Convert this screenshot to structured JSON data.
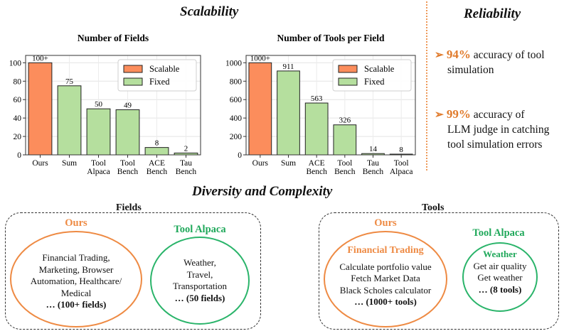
{
  "sections": {
    "scalability": "Scalability",
    "reliability": "Reliability",
    "diversity": "Diversity and Complexity"
  },
  "reliability_items": [
    {
      "arrow": "➢",
      "value": "94%",
      "text_line1": " accuracy of tool",
      "text_line2": "simulation"
    },
    {
      "arrow": "➢",
      "value": "99%",
      "text_line1": " accuracy of",
      "text_line2": "LLM judge in catching",
      "text_line3": "tool simulation errors"
    }
  ],
  "chart_data": [
    {
      "type": "bar",
      "title": "Number of Fields",
      "categories": [
        "Ours",
        "Sum",
        "Tool\nAlpaca",
        "Tool\nBench",
        "ACE\nBench",
        "Tau\nBench"
      ],
      "values": [
        100,
        75,
        50,
        49,
        8,
        2
      ],
      "value_labels": [
        "100+",
        "75",
        "50",
        "49",
        "8",
        "2"
      ],
      "kinds": [
        "scalable",
        "fixed",
        "fixed",
        "fixed",
        "fixed",
        "fixed"
      ],
      "yticks": [
        0,
        20,
        40,
        60,
        80,
        100
      ],
      "ylim": [
        0,
        108
      ],
      "grid": true,
      "legend": {
        "placement": "top-right",
        "entries": [
          {
            "label": "Scalable",
            "kind": "scalable"
          },
          {
            "label": "Fixed",
            "kind": "fixed"
          }
        ]
      },
      "colors": {
        "scalable": "#fc8d5c",
        "fixed": "#b5df9e"
      }
    },
    {
      "type": "bar",
      "title": "Number of Tools per Field",
      "categories": [
        "Ours",
        "Sum",
        "ACE\nBench",
        "Tool\nBench",
        "Tau\nBench",
        "Tool\nAlpaca"
      ],
      "values": [
        1000,
        911,
        563,
        326,
        14,
        8
      ],
      "value_labels": [
        "1000+",
        "911",
        "563",
        "326",
        "14",
        "8"
      ],
      "kinds": [
        "scalable",
        "fixed",
        "fixed",
        "fixed",
        "fixed",
        "fixed"
      ],
      "yticks": [
        0,
        200,
        400,
        600,
        800,
        1000
      ],
      "ylim": [
        0,
        1080
      ],
      "grid": true,
      "legend": {
        "placement": "top-right",
        "entries": [
          {
            "label": "Scalable",
            "kind": "scalable"
          },
          {
            "label": "Fixed",
            "kind": "fixed"
          }
        ]
      },
      "colors": {
        "scalable": "#fc8d5c",
        "fixed": "#b5df9e"
      }
    }
  ],
  "fields_panel": {
    "title": "Fields",
    "ours": {
      "label": "Ours",
      "line1": "Financial Trading,",
      "line2": "Marketing, Browser",
      "line3": "Automation, Healthcare/",
      "line4": "Medical",
      "count": "… (100+ fields)"
    },
    "tool_alpaca": {
      "label": "Tool Alpaca",
      "line1": "Weather,",
      "line2": "Travel,",
      "line3": "Transportation",
      "count": "… (50 fields)"
    }
  },
  "tools_panel": {
    "title": "Tools",
    "ours": {
      "label": "Ours",
      "field": "Financial Trading",
      "line1": "Calculate portfolio value",
      "line2": "Fetch Market Data",
      "line3": "Black Scholes calculator",
      "count": "… (1000+ tools)"
    },
    "tool_alpaca": {
      "label": "Tool Alpaca",
      "field": "Weather",
      "line1": "Get air quality",
      "line2": "Get weather",
      "count": "… (8 tools)"
    }
  }
}
